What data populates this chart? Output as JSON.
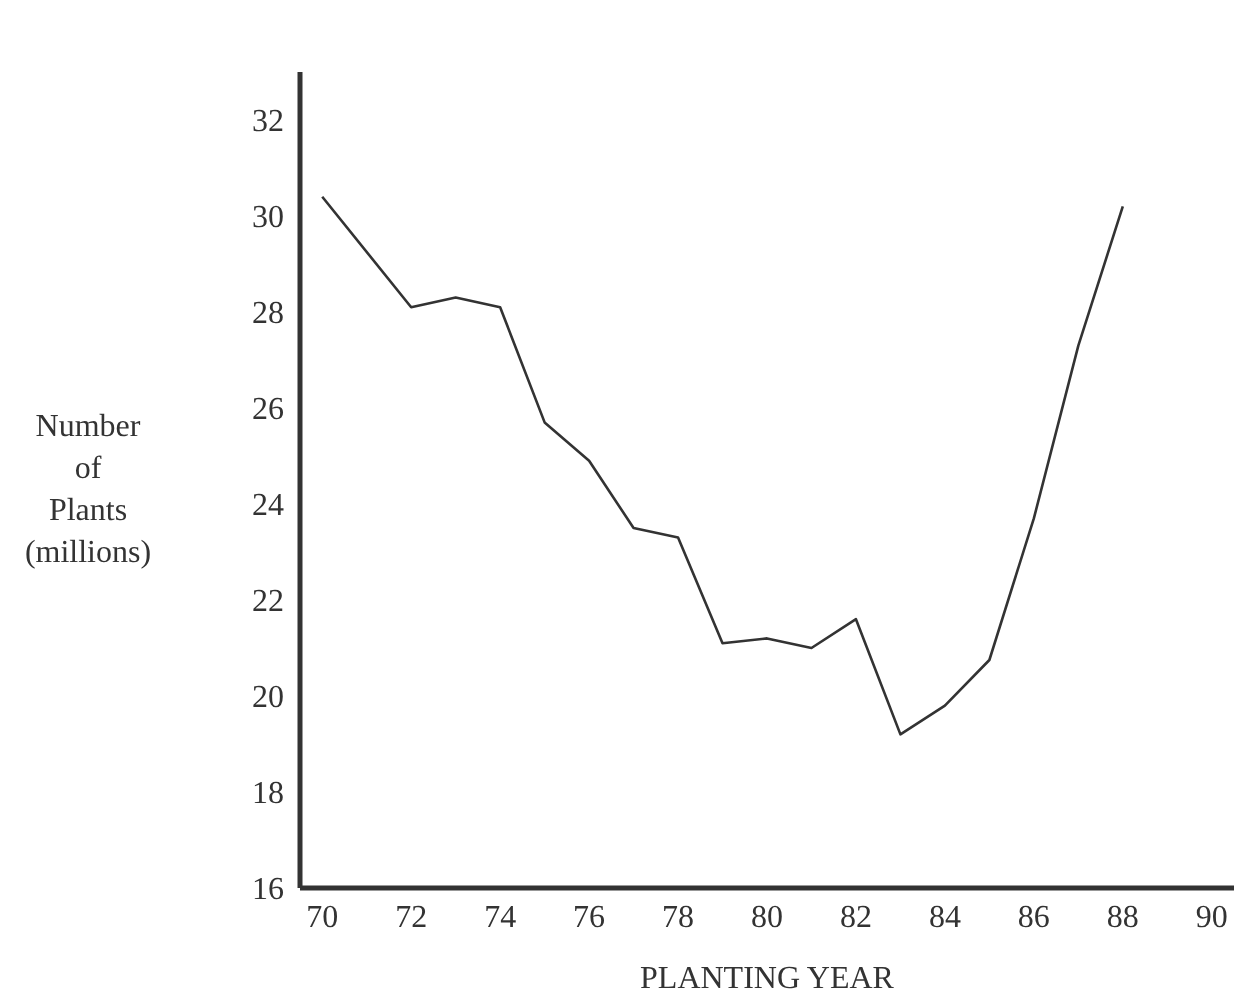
{
  "chart_data": {
    "type": "line",
    "xlabel": "PLANTING YEAR",
    "ylabel": "Number\nof\nPlants\n(millions)",
    "x": [
      70,
      72,
      73,
      74,
      75,
      76,
      77,
      78,
      79,
      80,
      81,
      82,
      83,
      84,
      85,
      86,
      87,
      88
    ],
    "series": [
      {
        "color": "#333333",
        "values": [
          30.4,
          28.1,
          28.3,
          28.1,
          25.7,
          24.9,
          23.5,
          23.3,
          21.1,
          21.2,
          21.0,
          21.6,
          19.2,
          19.8,
          20.75,
          23.7,
          27.3,
          30.2
        ]
      }
    ],
    "xlim": [
      69.5,
      90.5
    ],
    "xticks": [
      70,
      72,
      74,
      76,
      78,
      80,
      82,
      84,
      86,
      88,
      90
    ],
    "ylim": [
      16,
      33
    ],
    "yticks": [
      16,
      18,
      20,
      22,
      24,
      26,
      28,
      30,
      32
    ],
    "grid": false,
    "legend": false,
    "marker": "none",
    "line_style": "solid"
  }
}
